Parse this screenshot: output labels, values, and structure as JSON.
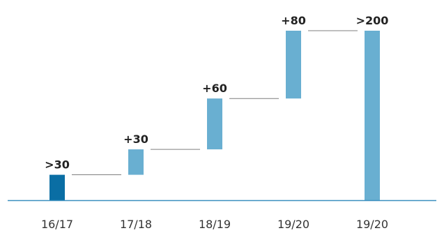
{
  "chart_data": {
    "type": "bar",
    "subtype": "waterfall",
    "categories": [
      "16/17",
      "17/18",
      "18/19",
      "19/20",
      "19/20"
    ],
    "series": [
      {
        "values": [
          30,
          30,
          60,
          80,
          200
        ],
        "measure": [
          "absolute",
          "relative",
          "relative",
          "relative",
          "total"
        ]
      }
    ],
    "data_labels": [
      ">30",
      "+30",
      "+60",
      "+80",
      ">200"
    ],
    "ylim": [
      0,
      215
    ],
    "grid": false,
    "connectors": true,
    "colors": {
      "start": "#0a6ea4",
      "step": "#69afd1",
      "total": "#69afd1",
      "baseline": "#3a8fbf",
      "connector": "#7f7f7f"
    }
  }
}
